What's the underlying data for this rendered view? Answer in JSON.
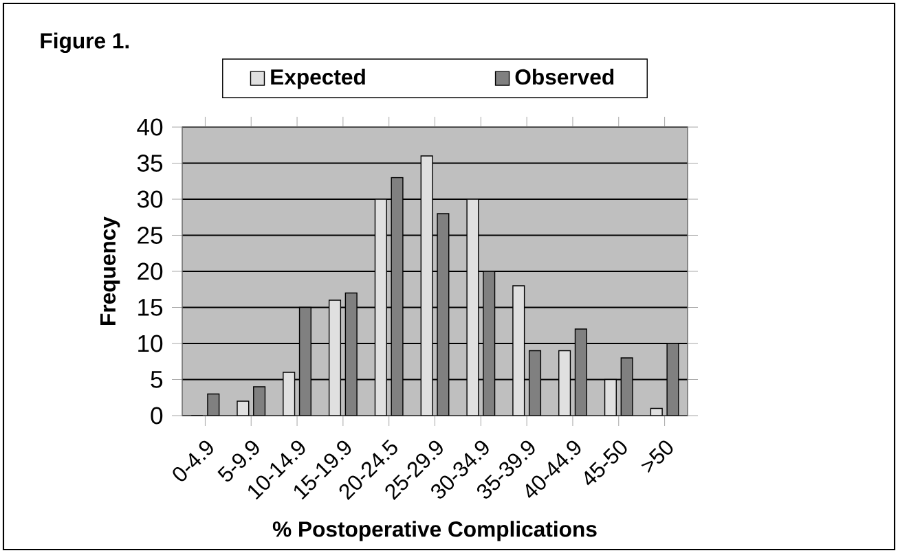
{
  "chart_data": {
    "type": "bar",
    "title": "Figure 1.",
    "xlabel": "%  Postoperative Complications",
    "ylabel": "Frequency",
    "categories": [
      "0-4.9",
      "5-9.9",
      "10-14.9",
      "15-19.9",
      "20-24.5",
      "25-29.9",
      "30-34.9",
      "35-39.9",
      "40-44.9",
      "45-50",
      ">50"
    ],
    "series": [
      {
        "name": "Expected",
        "color": "#e0e0e0",
        "values": [
          0,
          2,
          6,
          16,
          30,
          36,
          30,
          18,
          9,
          5,
          1
        ]
      },
      {
        "name": "Observed",
        "color": "#808080",
        "values": [
          3,
          4,
          15,
          17,
          33,
          28,
          20,
          9,
          12,
          8,
          10
        ]
      }
    ],
    "ylim": [
      0,
      40
    ],
    "yticks": [
      0,
      5,
      10,
      15,
      20,
      25,
      30,
      35,
      40
    ],
    "grid": "y",
    "legend": "top"
  }
}
